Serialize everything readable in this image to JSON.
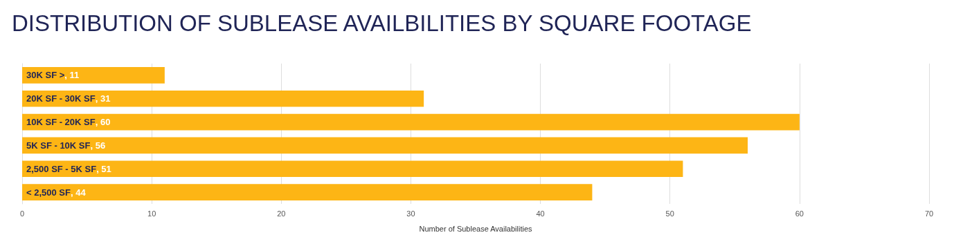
{
  "chart_data": {
    "type": "bar",
    "orientation": "horizontal",
    "title": "DISTRIBUTION OF SUBLEASE AVAILBILITIES BY SQUARE FOOTAGE",
    "xlabel": "Number of Sublease Availabilities",
    "categories": [
      "30K SF >",
      "20K SF - 30K SF",
      "10K SF - 20K SF",
      "5K SF - 10K SF",
      "2,500 SF - 5K SF",
      "< 2,500 SF"
    ],
    "values": [
      11,
      31,
      60,
      56,
      51,
      44
    ],
    "color": "#fdb515",
    "xlim": [
      0,
      70
    ],
    "xticks": [
      0,
      10,
      20,
      30,
      40,
      50,
      60,
      70
    ],
    "value_labels": [
      ", 11",
      ", 31",
      ", 60",
      ", 56",
      ", 51",
      ", 44"
    ],
    "grid": "x",
    "tick_labels": "x"
  }
}
